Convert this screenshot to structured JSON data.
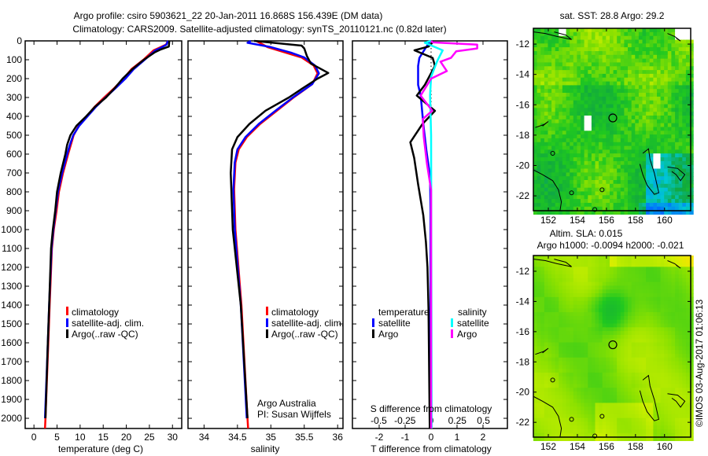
{
  "title": {
    "line1": "Argo profile: csiro 5903621_22 20-Jan-2011 16.868S 156.439E (DM data)",
    "line2": "Climatology: CARS2009. Satellite-adjusted climatology: synTS_20110121.nc (0.82d later)"
  },
  "colors": {
    "climatology": "#ff0000",
    "satellite": "#0000ff",
    "argo": "#000000",
    "sal_satellite": "#00ffff",
    "sal_argo": "#ff00ff"
  },
  "depth_axis": {
    "ticks": [
      0,
      100,
      200,
      300,
      400,
      500,
      600,
      700,
      800,
      900,
      1000,
      1100,
      1200,
      1300,
      1400,
      1500,
      1600,
      1700,
      1800,
      1900,
      2000
    ],
    "range": [
      0,
      2054
    ]
  },
  "chart_data": [
    {
      "type": "line",
      "title": "",
      "xlabel": "temperature (deg C)",
      "ylabel": "depth",
      "xlim": [
        -1.9,
        32
      ],
      "ylim": [
        2054,
        0
      ],
      "xticks": [
        0,
        5,
        10,
        15,
        20,
        25,
        30
      ],
      "legend": {
        "placement": "center",
        "entries": [
          "climatology",
          "satellite-adj. clim.",
          "Argo(..raw -QC)"
        ]
      },
      "series": [
        {
          "name": "climatology",
          "depth": [
            0,
            20,
            40,
            50,
            100,
            150,
            200,
            250,
            300,
            350,
            400,
            450,
            500,
            550,
            600,
            700,
            800,
            900,
            1000,
            1100,
            1400,
            1600,
            2000,
            2054
          ],
          "values": [
            29,
            28.6,
            26.8,
            25.9,
            23.7,
            21.1,
            19.4,
            17.4,
            15.2,
            13.1,
            11.4,
            9.7,
            8.6,
            8,
            7.4,
            6.3,
            5.4,
            4.9,
            4.3,
            3.9,
            3.4,
            3.1,
            2.5,
            2.4
          ]
        },
        {
          "name": "satellite-adj. clim.",
          "depth": [
            0,
            20,
            40,
            50,
            100,
            150,
            200,
            250,
            300,
            350,
            400,
            450,
            500,
            550,
            600,
            700,
            800,
            900,
            1000,
            1100,
            1400,
            1600,
            2000
          ],
          "values": [
            29,
            28.7,
            27.2,
            26.3,
            24,
            21.6,
            19.8,
            17.7,
            15.5,
            13.4,
            11.6,
            9.8,
            8.5,
            7.8,
            7.2,
            6.1,
            5.2,
            4.7,
            4.2,
            3.8,
            3.3,
            3,
            2.4
          ]
        },
        {
          "name": "Argo(..raw -QC)",
          "depth": [
            0,
            30,
            45,
            60,
            100,
            150,
            200,
            250,
            300,
            350,
            400,
            450,
            500,
            550,
            600,
            700,
            800,
            900,
            1000,
            1100,
            1400,
            1600,
            2000
          ],
          "values": [
            29.3,
            29.2,
            27.5,
            26.2,
            23.8,
            21.3,
            19.2,
            17.5,
            15.6,
            13.2,
            11.3,
            9.2,
            7.9,
            7.2,
            6.8,
            5.8,
            5,
            4.6,
            4.1,
            3.7,
            3.3,
            3,
            2.5
          ]
        }
      ]
    },
    {
      "type": "line",
      "title": "",
      "xlabel": "salinity",
      "ylabel": "depth",
      "xlim": [
        33.76,
        36.08
      ],
      "ylim": [
        2054,
        0
      ],
      "xticks": [
        34,
        34.5,
        35,
        35.5,
        36
      ],
      "legend": {
        "placement": "center-right",
        "entries": [
          "climatology",
          "satellite-adj. clim.",
          "Argo(..raw -QC)"
        ]
      },
      "annotation": [
        "Argo Australia",
        "PI: Susan Wijffels"
      ],
      "series": [
        {
          "name": "climatology",
          "depth": [
            0,
            33,
            62,
            88,
            130,
            172,
            229,
            300,
            367,
            440,
            510,
            575,
            645,
            785,
            1000,
            1400,
            2000,
            2054
          ],
          "values": [
            34.78,
            34.95,
            35.22,
            35.46,
            35.64,
            35.7,
            35.62,
            35.34,
            35.1,
            34.84,
            34.64,
            34.52,
            34.47,
            34.45,
            34.47,
            34.56,
            34.65,
            34.66
          ]
        },
        {
          "name": "satellite-adj. clim.",
          "depth": [
            0,
            10,
            33,
            62,
            88,
            130,
            172,
            229,
            300,
            367,
            440,
            510,
            575,
            645,
            785,
            1000,
            1400,
            2000
          ],
          "values": [
            34.7,
            34.65,
            35.0,
            35.3,
            35.5,
            35.66,
            35.72,
            35.62,
            35.33,
            35.08,
            34.82,
            34.62,
            34.5,
            34.46,
            34.44,
            34.46,
            34.55,
            34.64
          ]
        },
        {
          "name": "Argo(..raw -QC)",
          "depth": [
            0,
            25,
            40,
            80,
            120,
            170,
            200,
            250,
            300,
            370,
            440,
            510,
            575,
            700,
            1000,
            1400,
            2000
          ],
          "values": [
            34.75,
            35.46,
            35.5,
            35.54,
            35.6,
            35.86,
            35.7,
            35.48,
            35.27,
            34.92,
            34.68,
            34.5,
            34.42,
            34.4,
            34.43,
            34.55,
            34.65
          ]
        }
      ]
    },
    {
      "type": "line",
      "title": "",
      "xlabel": "T difference from climatology",
      "x2label": "S difference from climatology",
      "ylabel": "depth",
      "xlim": [
        -3.03,
        2.94
      ],
      "x2lim": [
        -0.752,
        0.729
      ],
      "ylim": [
        2054,
        0
      ],
      "xticks": [
        -2,
        -1,
        0,
        1,
        2
      ],
      "x2ticks": [
        "-0.5",
        "-0.25",
        "0",
        "0.25",
        "0.5"
      ],
      "legend": {
        "placement": "center",
        "temperature_heading": "temperature",
        "salinity_heading": "salinity",
        "entries": [
          "satellite",
          "Argo",
          "satellite",
          "Argo"
        ]
      },
      "series": [
        {
          "name": "T satellite",
          "axis": "T",
          "depth": [
            0,
            50,
            90,
            133,
            233,
            290,
            440,
            580,
            720,
            900,
            2054
          ],
          "values": [
            -0.03,
            -0.27,
            -0.45,
            -0.5,
            -0.5,
            -0.4,
            -0.3,
            -0.18,
            -0.04,
            -0.02,
            -0.02
          ]
        },
        {
          "name": "T Argo",
          "axis": "T",
          "depth": [
            0,
            8,
            30,
            50,
            90,
            133,
            233,
            290,
            371,
            440,
            537,
            620,
            760,
            925,
            1065,
            1200,
            1420,
            2054
          ],
          "values": [
            0,
            0.06,
            -0.1,
            -0.64,
            0.06,
            0.15,
            -0.24,
            -0.55,
            0.15,
            -0.33,
            -0.8,
            -0.65,
            -0.5,
            -0.3,
            -0.2,
            -0.14,
            -0.1,
            -0.05
          ]
        },
        {
          "name": "S satellite",
          "axis": "S",
          "depth": [
            0,
            10,
            50,
            105,
            190,
            290,
            500,
            2054
          ],
          "values": [
            0,
            -0.06,
            0.11,
            0.06,
            0,
            -0.01,
            0,
            0.005
          ]
        },
        {
          "name": "S Argo",
          "axis": "S",
          "depth": [
            0,
            8,
            20,
            40,
            55,
            90,
            110,
            160,
            200,
            290,
            370,
            415,
            510,
            650,
            790,
            2054
          ],
          "values": [
            0,
            0.015,
            0.44,
            0.44,
            0.24,
            0.19,
            0.09,
            0.15,
            0,
            -0.1,
            0.01,
            -0.08,
            -0.07,
            -0.04,
            0,
            0
          ]
        }
      ]
    }
  ],
  "maps": {
    "lon_ticks": [
      152,
      154,
      156,
      158,
      160
    ],
    "lat_ticks": [
      -12,
      -14,
      -16,
      -18,
      -20,
      -22
    ],
    "sst": {
      "title": "sat. SST: 28.8 Argo: 29.2"
    },
    "sla": {
      "title1": "Altim. SLA: 0.015",
      "title2": "Argo h1000: -0.0094 h2000: -0.021"
    },
    "profile_location": {
      "lon": 156.439,
      "lat": -16.868
    }
  },
  "credit": "©IMOS 03-Aug-2017 01:06:13"
}
